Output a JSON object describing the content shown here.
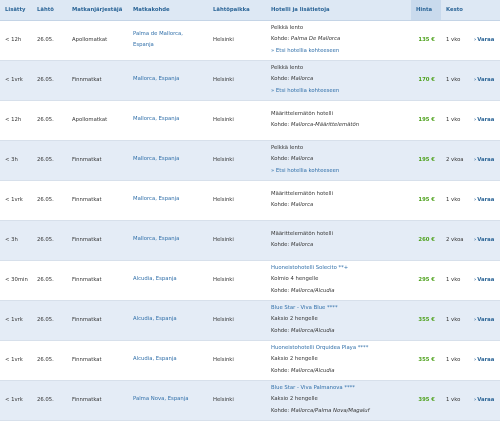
{
  "headers": {
    "added": "Lisätty",
    "departure": "Lähtö",
    "operator": "Matkanjärjestäjä",
    "destination": "Matkakohde",
    "origin": "Lähtöpaikka",
    "details": "Hotelli ja lisätietoja",
    "price": "Hinta",
    "duration": "Kesto"
  },
  "book_label": "Varaa",
  "rows": [
    {
      "added": "< 12h",
      "date": "26.05.",
      "operator": "Apollomatkat",
      "dest1": "Palma de Mallorca,",
      "dest2": "Espanja",
      "origin": "Helsinki",
      "l1": "Pelkkä lento",
      "l2a": "Kohde: ",
      "l2b": "Palma De Mallorca",
      "l3": "» Etsi hotellia kohteeseen",
      "price": "135 €",
      "duration": "1 vko"
    },
    {
      "added": "< 1vrk",
      "date": "26.05.",
      "operator": "Finnmatkat",
      "dest1": "Mallorca, Espanja",
      "dest2": "",
      "origin": "Helsinki",
      "l1": "Pelkkä lento",
      "l2a": "Kohde: ",
      "l2b": "Mallorca",
      "l3": "» Etsi hotellia kohteeseen",
      "price": "170 €",
      "duration": "1 vko"
    },
    {
      "added": "< 12h",
      "date": "26.05.",
      "operator": "Apollomatkat",
      "dest1": "Mallorca, Espanja",
      "dest2": "",
      "origin": "Helsinki",
      "l1": "Määrittelemätön hotelli",
      "l2a": "Kohde: ",
      "l2b": "Mallorca-Määrittelemätön",
      "l3": "",
      "price": "195 €",
      "duration": "1 vko"
    },
    {
      "added": "< 3h",
      "date": "26.05.",
      "operator": "Finnmatkat",
      "dest1": "Mallorca, Espanja",
      "dest2": "",
      "origin": "Helsinki",
      "l1": "Pelkkä lento",
      "l2a": "Kohde: ",
      "l2b": "Mallorca",
      "l3": "» Etsi hotellia kohteeseen",
      "price": "195 €",
      "duration": "2 vkoa"
    },
    {
      "added": "< 1vrk",
      "date": "26.05.",
      "operator": "Finnmatkat",
      "dest1": "Mallorca, Espanja",
      "dest2": "",
      "origin": "Helsinki",
      "l1": "Määrittelemätön hotelli",
      "l2a": "Kohde: ",
      "l2b": "Mallorca",
      "l3": "",
      "price": "195 €",
      "duration": "1 vko"
    },
    {
      "added": "< 3h",
      "date": "26.05.",
      "operator": "Finnmatkat",
      "dest1": "Mallorca, Espanja",
      "dest2": "",
      "origin": "Helsinki",
      "l1": "Määrittelemätön hotelli",
      "l2a": "Kohde: ",
      "l2b": "Mallorca",
      "l3": "",
      "price": "260 €",
      "duration": "2 vkoa"
    },
    {
      "added": "< 30min",
      "date": "26.05.",
      "operator": "Finnmatkat",
      "dest1": "Alcudia, Espanja",
      "dest2": "",
      "origin": "Helsinki",
      "l1": "Huoneistohotelli Solecito **+",
      "l2a": "Kolmio 4 hengelle",
      "l2b": "",
      "l3a": "Kohde: ",
      "l3b": "Mallorca/Alcudia",
      "price": "295 €",
      "duration": "1 vko"
    },
    {
      "added": "< 1vrk",
      "date": "26.05.",
      "operator": "Finnmatkat",
      "dest1": "Alcudia, Espanja",
      "dest2": "",
      "origin": "Helsinki",
      "l1": "Blue Star - Viva Blue ****",
      "l2a": "Kaksio 2 hengelle",
      "l2b": "",
      "l3a": "Kohde: ",
      "l3b": "Mallorca/Alcudia",
      "price": "355 €",
      "duration": "1 vko"
    },
    {
      "added": "< 1vrk",
      "date": "26.05.",
      "operator": "Finnmatkat",
      "dest1": "Alcudia, Espanja",
      "dest2": "",
      "origin": "Helsinki",
      "l1": "Huoneistohotelli Orquidea Playa ****",
      "l2a": "Kaksio 2 hengelle",
      "l2b": "",
      "l3a": "Kohde: ",
      "l3b": "Mallorca/Alcudia",
      "price": "355 €",
      "duration": "1 vko"
    },
    {
      "added": "< 1vrk",
      "date": "26.05.",
      "operator": "Finnmatkat",
      "dest1": "Palma Nova, Espanja",
      "dest2": "",
      "origin": "Helsinki",
      "l1": "Blue Star - Viva Palmanova ****",
      "l2a": "Kaksio 2 hengelle",
      "l2b": "",
      "l3a": "Kohde: ",
      "l3b": "Mallorca/Palma Nova/Magaluf",
      "price": "395 €",
      "duration": "1 vko"
    }
  ]
}
